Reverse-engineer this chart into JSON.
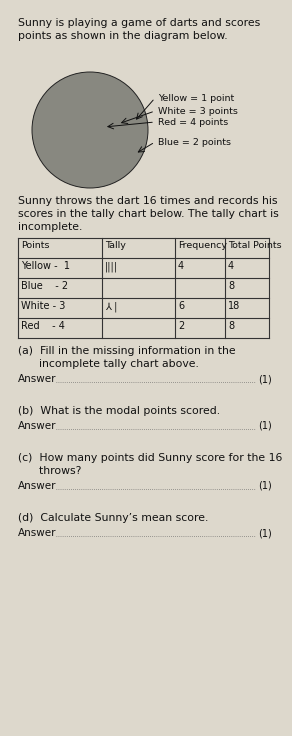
{
  "title_line1": "Sunny is playing a game of darts and scores",
  "title_line2": "points as shown in the diagram below.",
  "tally_intro_line1": "Sunny throws the dart 16 times and records his",
  "tally_intro_line2": "scores in the tally chart below. The tally chart is",
  "tally_intro_line3": "incomplete.",
  "table_headers": [
    "Points",
    "Tally",
    "Frequency",
    "Total Points"
  ],
  "table_rows": [
    {
      "points": "Yellow -  1",
      "tally": "||||",
      "frequency": "4",
      "total": "4"
    },
    {
      "points": "Blue    - 2",
      "tally": "",
      "frequency": "",
      "total": "8"
    },
    {
      "points": "White - 3",
      "tally": "⅄ |",
      "frequency": "6",
      "total": "18"
    },
    {
      "points": "Red    - 4",
      "tally": "",
      "frequency": "2",
      "total": "8"
    }
  ],
  "dart_labels": [
    {
      "label": "Yellow = 1 point",
      "xt": 0.42,
      "yt": 0.56,
      "xl": 0.62,
      "yl": 0.6
    },
    {
      "label": "White = 3 points",
      "xt": 0.38,
      "yt": 0.5,
      "xl": 0.62,
      "yl": 0.52
    },
    {
      "label": "Red = 4 points",
      "xt": 0.36,
      "yt": 0.47,
      "xl": 0.62,
      "yl": 0.46
    },
    {
      "label": "Blue = 2 points",
      "xt": 0.42,
      "yt": 0.66,
      "xl": 0.62,
      "yl": 0.7
    }
  ],
  "circle_layers": [
    {
      "r": 0.42,
      "color": "#888880"
    },
    {
      "r": 0.3,
      "color": "#c8c4b8"
    },
    {
      "r": 0.2,
      "color": "#a0a090"
    },
    {
      "r": 0.11,
      "color": "#787068"
    },
    {
      "r": 0.045,
      "color": "#1a1a18"
    }
  ],
  "questions": [
    {
      "q": "(a)  Fill in the missing information in the\n      incomplete tally chart above.",
      "has_answer": false
    },
    {
      "q": "(b)  What is the modal points scored.",
      "has_answer": true
    },
    {
      "q": "(c)  How many points did Sunny score for the 16\n      throws?",
      "has_answer": true
    },
    {
      "q": "(d)  Calculate Sunny’s mean score.",
      "has_answer": true
    }
  ],
  "answer_label": "Answer",
  "mark": "(1)",
  "bg_color": "#ddd8cc",
  "text_color": "#111111",
  "border_color": "#555555"
}
